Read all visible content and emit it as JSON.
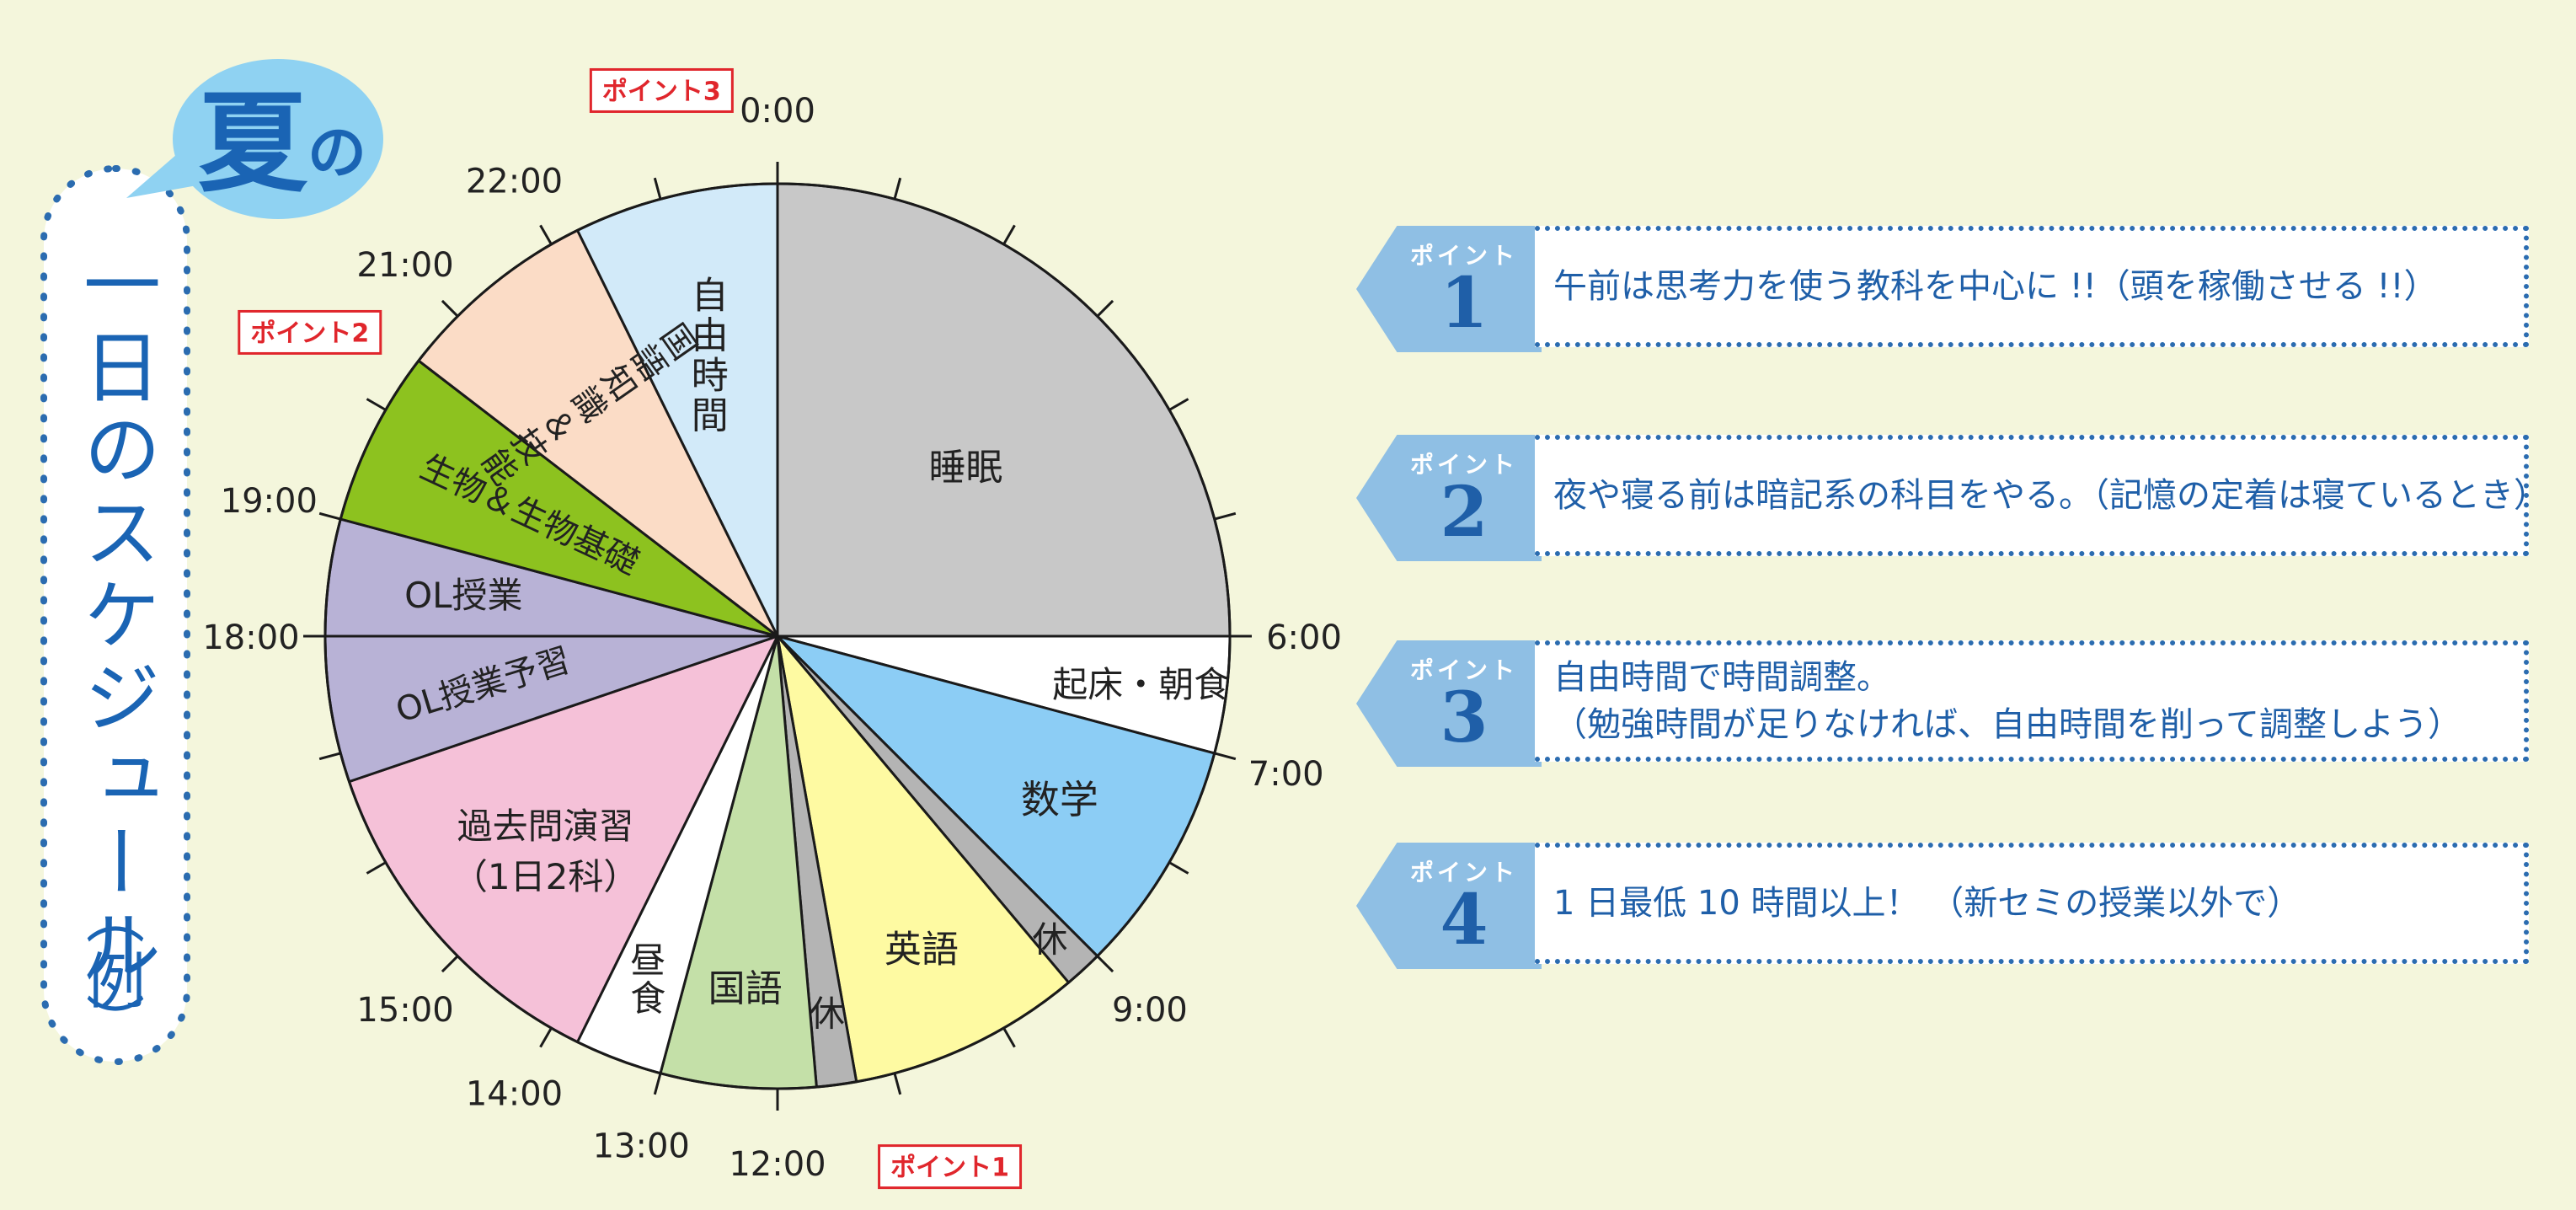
{
  "title": {
    "season": "夏",
    "particle": "の",
    "main": "一日のスケジュール",
    "example": "例"
  },
  "colors": {
    "background": "#f4f6dc",
    "accent_blue": "#2b6cb0",
    "tag_blue": "#8fbfe4",
    "point_label_red": "#e0262c"
  },
  "chart_data": {
    "type": "pie",
    "unit": "hours (24h clock)",
    "clockwise_from_top": true,
    "segments": [
      {
        "label": "睡眠",
        "start": 0,
        "end": 6,
        "color": "#c8c8c8"
      },
      {
        "label": "起床・朝食",
        "start": 6,
        "end": 7,
        "color": "#ffffff"
      },
      {
        "label": "数学",
        "start": 7,
        "end": 9,
        "color": "#8ccdf5"
      },
      {
        "label": "休",
        "start": 9,
        "end": 9.33,
        "color": "#b4b4b4"
      },
      {
        "label": "英語",
        "start": 9.33,
        "end": 11.33,
        "color": "#fefaa2"
      },
      {
        "label": "休",
        "start": 11.33,
        "end": 11.67,
        "color": "#b4b4b4"
      },
      {
        "label": "国語",
        "start": 11.67,
        "end": 13,
        "color": "#c4e0a8"
      },
      {
        "label": "昼食",
        "start": 13,
        "end": 13.75,
        "color": "#ffffff"
      },
      {
        "label": "過去問演習",
        "label2": "（1日2科）",
        "start": 13.75,
        "end": 16.75,
        "color": "#f5c1d8"
      },
      {
        "label": "OL授業予習",
        "start": 16.75,
        "end": 18,
        "color": "#b8b2d6"
      },
      {
        "label": "OL授業",
        "start": 18,
        "end": 19,
        "color": "#b8b2d6"
      },
      {
        "label": "生物＆生物基礎",
        "start": 19,
        "end": 20.5,
        "color": "#8dc21f"
      },
      {
        "label": "国語知識＆技能",
        "start": 20.5,
        "end": 22.25,
        "color": "#fbdcc6"
      },
      {
        "label": "自由時間",
        "start": 22.25,
        "end": 24,
        "color": "#d2eaf9"
      }
    ],
    "tick_labels": [
      {
        "hour": 0,
        "text": "0:00"
      },
      {
        "hour": 6,
        "text": "6:00"
      },
      {
        "hour": 7,
        "text": "7:00"
      },
      {
        "hour": 9,
        "text": "9:00"
      },
      {
        "hour": 12,
        "text": "12:00"
      },
      {
        "hour": 13,
        "text": "13:00"
      },
      {
        "hour": 14,
        "text": "14:00"
      },
      {
        "hour": 15,
        "text": "15:00"
      },
      {
        "hour": 18,
        "text": "18:00"
      },
      {
        "hour": 19,
        "text": "19:00"
      },
      {
        "hour": 21,
        "text": "21:00"
      },
      {
        "hour": 22,
        "text": "22:00"
      }
    ],
    "point_markers": [
      {
        "text": "ポイント1",
        "hour": 10.8
      },
      {
        "text": "ポイント2",
        "hour": 20.2
      },
      {
        "text": "ポイント3",
        "hour": 23.2
      }
    ]
  },
  "points": [
    {
      "tag": "ポイント",
      "num": "1",
      "lines": [
        "午前は思考力を使う教科を中心に !!（頭を稼働させる !!）"
      ]
    },
    {
      "tag": "ポイント",
      "num": "2",
      "lines": [
        "夜や寝る前は暗記系の科目をやる。（記憶の定着は寝ているとき）"
      ]
    },
    {
      "tag": "ポイント",
      "num": "3",
      "lines": [
        "自由時間で時間調整。",
        "（勉強時間が足りなければ、自由時間を削って調整しよう）"
      ]
    },
    {
      "tag": "ポイント",
      "num": "4",
      "lines": [
        "1 日最低 10 時間以上！ （新セミの授業以外で）"
      ]
    }
  ]
}
